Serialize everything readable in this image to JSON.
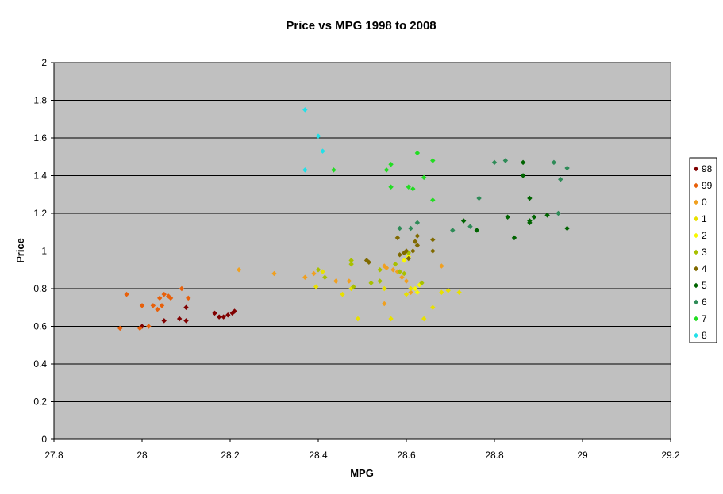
{
  "chart_data": {
    "type": "scatter",
    "title": "Price vs MPG 1998 to 2008",
    "xlabel": "MPG",
    "ylabel": "Price",
    "xlim": [
      27.8,
      29.2
    ],
    "ylim": [
      0,
      2
    ],
    "x_ticks": [
      "27.8",
      "28",
      "28.2",
      "28.4",
      "28.6",
      "28.8",
      "29",
      "29.2"
    ],
    "y_ticks": [
      "0",
      "0.2",
      "0.4",
      "0.6",
      "0.8",
      "1",
      "1.2",
      "1.4",
      "1.6",
      "1.8",
      "2"
    ],
    "x_tick_values": [
      27.8,
      28.0,
      28.2,
      28.4,
      28.6,
      28.8,
      29.0,
      29.2
    ],
    "y_tick_values": [
      0,
      0.2,
      0.4,
      0.6,
      0.8,
      1.0,
      1.2,
      1.4,
      1.6,
      1.8,
      2.0
    ],
    "grid": "horizontal",
    "plot_background": "#C0C0C0",
    "legend_position": "right",
    "series": [
      {
        "name": "98",
        "color": "#800000",
        "points": [
          [
            28.0,
            0.6
          ],
          [
            28.05,
            0.63
          ],
          [
            28.085,
            0.64
          ],
          [
            28.1,
            0.63
          ],
          [
            28.1,
            0.7
          ],
          [
            28.165,
            0.67
          ],
          [
            28.175,
            0.65
          ],
          [
            28.185,
            0.65
          ],
          [
            28.195,
            0.66
          ],
          [
            28.205,
            0.67
          ],
          [
            28.21,
            0.68
          ]
        ]
      },
      {
        "name": "99",
        "color": "#E8600A",
        "points": [
          [
            27.95,
            0.59
          ],
          [
            27.965,
            0.77
          ],
          [
            27.995,
            0.59
          ],
          [
            28.0,
            0.71
          ],
          [
            28.015,
            0.6
          ],
          [
            28.025,
            0.71
          ],
          [
            28.035,
            0.69
          ],
          [
            28.04,
            0.75
          ],
          [
            28.045,
            0.71
          ],
          [
            28.05,
            0.77
          ],
          [
            28.06,
            0.76
          ],
          [
            28.065,
            0.75
          ],
          [
            28.09,
            0.8
          ],
          [
            28.105,
            0.75
          ]
        ]
      },
      {
        "name": "0",
        "color": "#F0A020",
        "points": [
          [
            28.22,
            0.9
          ],
          [
            28.3,
            0.88
          ],
          [
            28.37,
            0.86
          ],
          [
            28.39,
            0.88
          ],
          [
            28.44,
            0.84
          ],
          [
            28.47,
            0.84
          ],
          [
            28.55,
            0.92
          ],
          [
            28.555,
            0.91
          ],
          [
            28.57,
            0.9
          ],
          [
            28.58,
            0.89
          ],
          [
            28.59,
            0.86
          ],
          [
            28.6,
            0.84
          ],
          [
            28.61,
            0.78
          ],
          [
            28.68,
            0.92
          ],
          [
            28.55,
            0.72
          ]
        ]
      },
      {
        "name": "1",
        "color": "#E8E000",
        "points": [
          [
            28.395,
            0.81
          ],
          [
            28.41,
            0.89
          ],
          [
            28.455,
            0.77
          ],
          [
            28.475,
            0.8
          ],
          [
            28.49,
            0.64
          ],
          [
            28.55,
            0.8
          ],
          [
            28.565,
            0.64
          ],
          [
            28.6,
            0.77
          ],
          [
            28.61,
            0.8
          ],
          [
            28.64,
            0.64
          ],
          [
            28.66,
            0.7
          ],
          [
            28.68,
            0.78
          ],
          [
            28.695,
            0.79
          ],
          [
            28.72,
            0.78
          ]
        ]
      },
      {
        "name": "2",
        "color": "#F8F800",
        "points": [
          [
            28.595,
            0.95
          ],
          [
            28.605,
            0.97
          ],
          [
            28.62,
            0.8
          ],
          [
            28.63,
            0.82
          ],
          [
            28.625,
            0.78
          ]
        ]
      },
      {
        "name": "3",
        "color": "#A8C000",
        "points": [
          [
            28.4,
            0.9
          ],
          [
            28.415,
            0.86
          ],
          [
            28.475,
            0.95
          ],
          [
            28.475,
            0.93
          ],
          [
            28.52,
            0.83
          ],
          [
            28.54,
            0.84
          ],
          [
            28.54,
            0.9
          ],
          [
            28.575,
            0.93
          ],
          [
            28.585,
            0.89
          ],
          [
            28.595,
            0.88
          ],
          [
            28.605,
            0.99
          ],
          [
            28.635,
            0.83
          ],
          [
            28.48,
            0.81
          ]
        ]
      },
      {
        "name": "4",
        "color": "#806A00",
        "points": [
          [
            28.51,
            0.95
          ],
          [
            28.515,
            0.94
          ],
          [
            28.58,
            1.07
          ],
          [
            28.585,
            0.98
          ],
          [
            28.595,
            0.99
          ],
          [
            28.6,
            1.0
          ],
          [
            28.605,
            0.96
          ],
          [
            28.615,
            1.0
          ],
          [
            28.62,
            1.05
          ],
          [
            28.625,
            1.03
          ],
          [
            28.625,
            1.08
          ],
          [
            28.66,
            1.06
          ],
          [
            28.66,
            1.0
          ]
        ]
      },
      {
        "name": "5",
        "color": "#006400",
        "points": [
          [
            28.73,
            1.16
          ],
          [
            28.76,
            1.11
          ],
          [
            28.83,
            1.18
          ],
          [
            28.845,
            1.07
          ],
          [
            28.865,
            1.4
          ],
          [
            28.865,
            1.47
          ],
          [
            28.88,
            1.15
          ],
          [
            28.88,
            1.16
          ],
          [
            28.88,
            1.28
          ],
          [
            28.89,
            1.18
          ],
          [
            28.92,
            1.19
          ],
          [
            28.965,
            1.12
          ]
        ]
      },
      {
        "name": "6",
        "color": "#2E8B57",
        "points": [
          [
            28.585,
            1.12
          ],
          [
            28.61,
            1.12
          ],
          [
            28.625,
            1.15
          ],
          [
            28.705,
            1.11
          ],
          [
            28.745,
            1.13
          ],
          [
            28.765,
            1.28
          ],
          [
            28.8,
            1.47
          ],
          [
            28.825,
            1.48
          ],
          [
            28.935,
            1.47
          ],
          [
            28.945,
            1.2
          ],
          [
            28.95,
            1.38
          ],
          [
            28.965,
            1.44
          ]
        ]
      },
      {
        "name": "7",
        "color": "#22DD22",
        "points": [
          [
            28.435,
            1.43
          ],
          [
            28.555,
            1.43
          ],
          [
            28.565,
            1.34
          ],
          [
            28.565,
            1.46
          ],
          [
            28.605,
            1.34
          ],
          [
            28.615,
            1.33
          ],
          [
            28.625,
            1.52
          ],
          [
            28.64,
            1.39
          ],
          [
            28.66,
            1.27
          ],
          [
            28.66,
            1.48
          ]
        ]
      },
      {
        "name": "8",
        "color": "#22E0E8",
        "points": [
          [
            28.37,
            1.75
          ],
          [
            28.37,
            1.43
          ],
          [
            28.4,
            1.61
          ],
          [
            28.41,
            1.53
          ]
        ]
      }
    ]
  }
}
